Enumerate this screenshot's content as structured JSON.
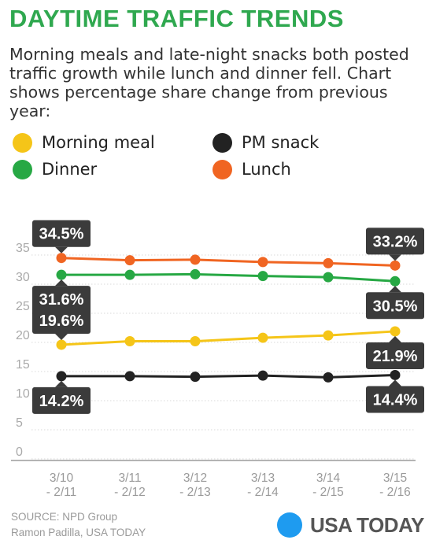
{
  "title": "DAYTIME TRAFFIC TRENDS",
  "subtitle": "Morning meals and late-night snacks both posted traffic growth while lunch and dinner fell. Chart shows percentage share change from previous year:",
  "legend": [
    {
      "label": "Morning meal",
      "color": "#f5c518"
    },
    {
      "label": "PM snack",
      "color": "#222222"
    },
    {
      "label": "Dinner",
      "color": "#27a844"
    },
    {
      "label": "Lunch",
      "color": "#f06522"
    }
  ],
  "chart_data": {
    "type": "line",
    "categories": [
      "3/10 - 2/11",
      "3/11 - 2/12",
      "3/12 - 2/13",
      "3/13 - 2/14",
      "3/14 - 2/15",
      "3/15 - 2/16"
    ],
    "series": [
      {
        "name": "Lunch",
        "color": "#f06522",
        "values": [
          34.5,
          34.1,
          34.2,
          33.8,
          33.6,
          33.2
        ]
      },
      {
        "name": "Dinner",
        "color": "#27a844",
        "values": [
          31.6,
          31.6,
          31.7,
          31.4,
          31.2,
          30.5
        ]
      },
      {
        "name": "Morning meal",
        "color": "#f5c518",
        "values": [
          19.6,
          20.2,
          20.2,
          20.8,
          21.2,
          21.9
        ]
      },
      {
        "name": "PM snack",
        "color": "#222222",
        "values": [
          14.2,
          14.2,
          14.1,
          14.3,
          14.0,
          14.4
        ]
      }
    ],
    "callouts": [
      {
        "series": "Lunch",
        "index": 0,
        "text": "34.5%",
        "side": "above"
      },
      {
        "series": "Lunch",
        "index": 5,
        "text": "33.2%",
        "side": "above"
      },
      {
        "series": "Dinner",
        "index": 0,
        "text": "31.6%",
        "side": "below"
      },
      {
        "series": "Dinner",
        "index": 5,
        "text": "30.5%",
        "side": "below"
      },
      {
        "series": "Morning meal",
        "index": 0,
        "text": "19.6%",
        "side": "above"
      },
      {
        "series": "Morning meal",
        "index": 5,
        "text": "21.9%",
        "side": "below"
      },
      {
        "series": "PM snack",
        "index": 0,
        "text": "14.2%",
        "side": "below"
      },
      {
        "series": "PM snack",
        "index": 5,
        "text": "14.4%",
        "side": "below"
      }
    ],
    "yticks": [
      0,
      5,
      10,
      15,
      20,
      25,
      30,
      35
    ],
    "ylim": [
      0,
      35
    ],
    "grid": true
  },
  "source": "SOURCE: NPD Group",
  "credit": "Ramon Padilla, USA TODAY",
  "brand": {
    "text": "USA TODAY",
    "color": "#1e9bf0"
  }
}
